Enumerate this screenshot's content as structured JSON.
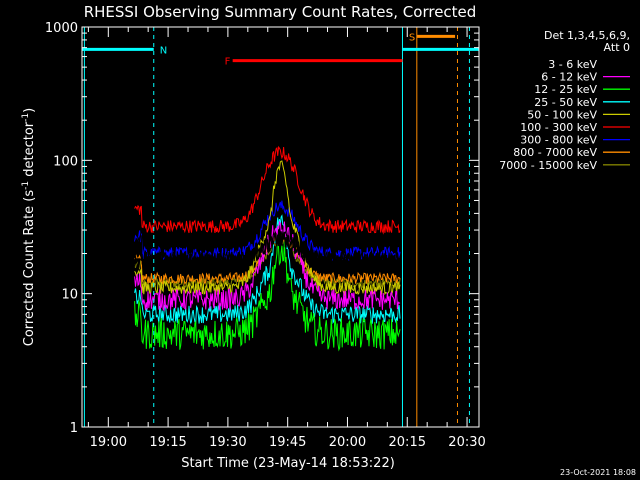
{
  "chart_data": {
    "type": "line",
    "title": "RHESSI Observing Summary Count Rates, Corrected",
    "xlabel": "Start Time (23-May-14 18:53:22)",
    "ylabel_main": "Corrected Count Rate (s",
    "ylabel_sup1": "-1",
    "ylabel_mid": " detector",
    "ylabel_sup2": "-1",
    "ylabel_end": ")",
    "footer_date": "23-Oct-2021 18:08",
    "y_scale": "log",
    "ylim": [
      1,
      1000
    ],
    "xlim_minutes": [
      18.89,
      20.55
    ],
    "x_ticks": [
      {
        "label": "19:00",
        "value": 19.0
      },
      {
        "label": "19:15",
        "value": 19.25
      },
      {
        "label": "19:30",
        "value": 19.5
      },
      {
        "label": "19:45",
        "value": 19.75
      },
      {
        "label": "20:00",
        "value": 20.0
      },
      {
        "label": "20:15",
        "value": 20.25
      },
      {
        "label": "20:30",
        "value": 20.5
      }
    ],
    "y_ticks": [
      {
        "label": "1",
        "value": 1
      },
      {
        "label": "10",
        "value": 10
      },
      {
        "label": "100",
        "value": 100
      },
      {
        "label": "1000",
        "value": 1000
      }
    ],
    "legend": {
      "header1": "Det 1,3,4,5,6,9,",
      "header2": "Att 0",
      "placement": "right"
    },
    "series": [
      {
        "name": "3 - 6 keV",
        "color": "#000000",
        "base": 18,
        "peak": 26,
        "noise": 0.06
      },
      {
        "name": "6 - 12 keV",
        "color": "#ff00ff",
        "base": 9,
        "peak": 30,
        "noise": 0.08
      },
      {
        "name": "12 - 25 keV",
        "color": "#00ff00",
        "base": 5,
        "peak": 22,
        "noise": 0.12
      },
      {
        "name": "25 - 50 keV",
        "color": "#00ffff",
        "base": 7,
        "peak": 35,
        "noise": 0.07
      },
      {
        "name": "50 - 100 keV",
        "color": "#cccc00",
        "base": 11,
        "peak": 90,
        "noise": 0.05
      },
      {
        "name": "100 - 300 keV",
        "color": "#ff0000",
        "base": 32,
        "peak": 115,
        "noise": 0.05
      },
      {
        "name": "300 - 800 keV",
        "color": "#0000ff",
        "base": 20,
        "peak": 45,
        "noise": 0.05
      },
      {
        "name": "800 - 7000 keV",
        "color": "#ff8c00",
        "base": 13,
        "peak": 27,
        "noise": 0.04
      },
      {
        "name": "7000 - 15000 keV",
        "color": "#808000",
        "base": 12,
        "peak": 25,
        "noise": 0.04
      }
    ],
    "flags": [
      {
        "label": "N",
        "color": "#00ffff",
        "x_start": 18.89,
        "x_end": 19.19,
        "level": 680
      },
      {
        "label": "F",
        "color": "#ff0000",
        "x_start": 19.52,
        "x_end": 20.23,
        "level": 560
      },
      {
        "label": "S",
        "color": "#ff8c00",
        "x_start": 20.29,
        "x_end": 20.45,
        "level": 850
      },
      {
        "label": "",
        "color": "#00ffff",
        "x_start": 20.23,
        "x_end": 20.55,
        "level": 680
      }
    ],
    "vlines": [
      {
        "x": 18.9,
        "color": "#00ffff",
        "style": "solid"
      },
      {
        "x": 19.19,
        "color": "#00ffff",
        "style": "dashed"
      },
      {
        "x": 20.23,
        "color": "#00ffff",
        "style": "solid"
      },
      {
        "x": 20.29,
        "color": "#ff8c00",
        "style": "solid"
      },
      {
        "x": 20.46,
        "color": "#ff8c00",
        "style": "dashed"
      },
      {
        "x": 20.51,
        "color": "#00ffff",
        "style": "dashed"
      }
    ]
  }
}
